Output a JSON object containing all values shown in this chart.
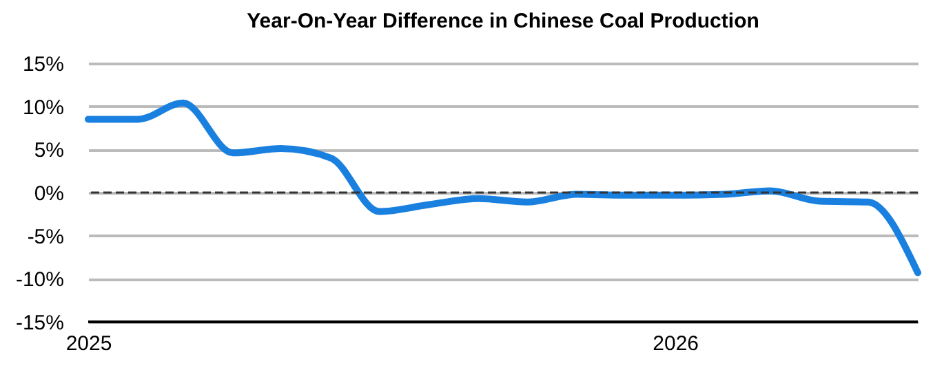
{
  "chart_data": {
    "type": "line",
    "title": "Year-On-Year Difference in Chinese Coal Production",
    "x": [
      "2025-01",
      "2025-02",
      "2025-03",
      "2025-04",
      "2025-05",
      "2025-06",
      "2025-07",
      "2025-08",
      "2025-09",
      "2025-10",
      "2025-11",
      "2025-12",
      "2026-01",
      "2026-02",
      "2026-03",
      "2026-04",
      "2026-05",
      "2026-06"
    ],
    "series": [
      {
        "color": "#1a80e0",
        "values": [
          8.5,
          8.5,
          10.4,
          4.6,
          5.1,
          4.0,
          -2.2,
          -1.4,
          -0.7,
          -1.1,
          -0.2,
          -0.3,
          -0.3,
          -0.2,
          0.2,
          -1.0,
          -1.1,
          -9.3
        ]
      }
    ],
    "xlim": [
      "2025-01",
      "2026-06"
    ],
    "xticks": [
      {
        "value": "2025-01",
        "label": "2025"
      },
      {
        "value": "2026-01",
        "label": "2026"
      }
    ],
    "ylim": [
      -15,
      15
    ],
    "yticks": [
      {
        "value": -15,
        "label": "-15%"
      },
      {
        "value": -10,
        "label": "-10%"
      },
      {
        "value": -5,
        "label": "-5%"
      },
      {
        "value": 0,
        "label": "0%"
      },
      {
        "value": 5,
        "label": "5%"
      },
      {
        "value": 10,
        "label": "10%"
      },
      {
        "value": 15,
        "label": "15%"
      }
    ],
    "ref_lines": [
      {
        "axis": "y",
        "value": 0,
        "color": "#333333",
        "line_style": "dashed"
      }
    ],
    "grid": "y",
    "marker": "none",
    "line_style": "solid"
  }
}
